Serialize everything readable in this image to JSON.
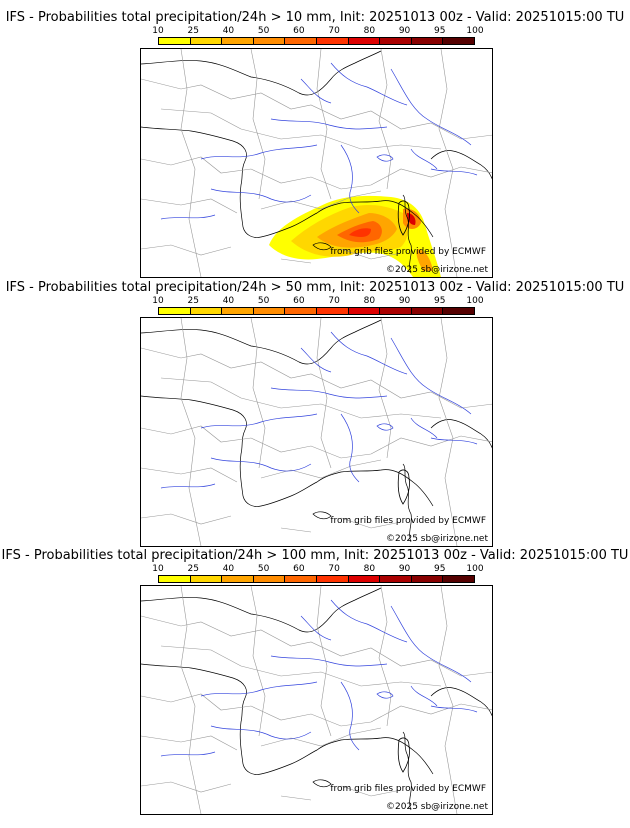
{
  "scale": {
    "ticks": [
      "10",
      "25",
      "40",
      "50",
      "60",
      "70",
      "80",
      "90",
      "95",
      "100"
    ],
    "colors": [
      "#ffff00",
      "#ffd700",
      "#ffa500",
      "#ff8c00",
      "#ff6600",
      "#ff3300",
      "#dd0000",
      "#aa0000",
      "#880000",
      "#550000"
    ]
  },
  "panels": [
    {
      "title": "IFS - Probabilities total precipitation/24h > 10 mm, Init: 20251013 00z - Valid: 20251015:00 TU",
      "credit": "from grib files provided by ECMWF",
      "copyright": "©2025 sb@irizone.net"
    },
    {
      "title": "IFS - Probabilities total precipitation/24h > 50 mm, Init: 20251013 00z - Valid: 20251015:00 TU",
      "credit": "from grib files provided by ECMWF",
      "copyright": "©2025 sb@irizone.net"
    },
    {
      "title": "IFS - Probabilities total precipitation/24h > 100 mm, Init: 20251013 00z - Valid: 20251015:00 TU",
      "credit": "from grib files provided by ECMWF",
      "copyright": "©2025 sb@irizone.net"
    }
  ]
}
